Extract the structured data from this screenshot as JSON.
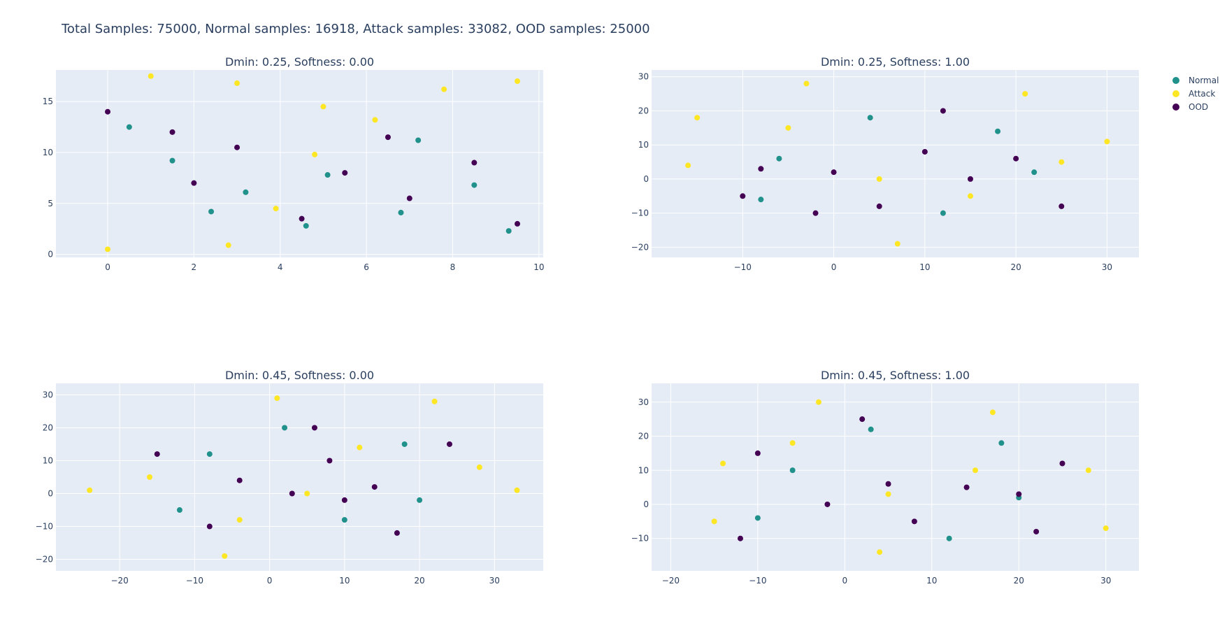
{
  "figure": {
    "title": "Total Samples: 75000, Normal samples: 16918, Attack samples: 33082, OOD samples: 25000",
    "plot_bg": "#e5ecf6",
    "grid_color": "#ffffff",
    "series_colors": {
      "Normal": "#21918c",
      "Attack": "#fde725",
      "OOD": "#440154"
    },
    "legend_placement": "top-right",
    "legend": [
      "Normal",
      "Attack",
      "OOD"
    ]
  },
  "chart_data": [
    {
      "type": "scatter",
      "title": "Dmin: 0.25, Softness: 0.00",
      "xlim": [
        -1.2,
        10.1
      ],
      "ylim": [
        -0.3,
        18.1
      ],
      "xticks": [
        0,
        2,
        4,
        6,
        8,
        10
      ],
      "yticks": [
        0,
        5,
        10,
        15
      ],
      "xtick_labels": [
        "0",
        "2",
        "4",
        "6",
        "8",
        "10"
      ],
      "ytick_labels": [
        "0",
        "5",
        "10",
        "15"
      ],
      "series": [
        {
          "name": "Normal",
          "points": [
            [
              0.5,
              12.5
            ],
            [
              1.5,
              9.2
            ],
            [
              3.2,
              6.1
            ],
            [
              5.1,
              7.8
            ],
            [
              6.8,
              4.1
            ],
            [
              8.5,
              6.8
            ],
            [
              9.3,
              2.3
            ],
            [
              7.2,
              11.2
            ],
            [
              2.4,
              4.2
            ],
            [
              4.6,
              2.8
            ]
          ]
        },
        {
          "name": "Attack",
          "points": [
            [
              1.0,
              17.5
            ],
            [
              3.0,
              16.8
            ],
            [
              5.0,
              14.5
            ],
            [
              6.2,
              13.2
            ],
            [
              4.8,
              9.8
            ],
            [
              3.9,
              4.5
            ],
            [
              2.8,
              0.9
            ],
            [
              0.0,
              0.5
            ],
            [
              7.8,
              16.2
            ],
            [
              9.5,
              17.0
            ]
          ]
        },
        {
          "name": "OOD",
          "points": [
            [
              0.0,
              14.0
            ],
            [
              1.5,
              12.0
            ],
            [
              3.0,
              10.5
            ],
            [
              5.5,
              8.0
            ],
            [
              7.0,
              5.5
            ],
            [
              8.5,
              9.0
            ],
            [
              9.5,
              3.0
            ],
            [
              2.0,
              7.0
            ],
            [
              4.5,
              3.5
            ],
            [
              6.5,
              11.5
            ]
          ]
        }
      ]
    },
    {
      "type": "scatter",
      "title": "Dmin: 0.25, Softness: 1.00",
      "xlim": [
        -20,
        33.5
      ],
      "ylim": [
        -23,
        32
      ],
      "xticks": [
        -10,
        0,
        10,
        20,
        30
      ],
      "yticks": [
        -20,
        -10,
        0,
        10,
        20,
        30
      ],
      "xtick_labels": [
        "−10",
        "0",
        "10",
        "20",
        "30"
      ],
      "ytick_labels": [
        "−20",
        "−10",
        "0",
        "10",
        "20",
        "30"
      ],
      "series": [
        {
          "name": "Normal",
          "points": [
            [
              -6,
              6
            ],
            [
              12,
              -10
            ],
            [
              18,
              14
            ],
            [
              -8,
              -6
            ],
            [
              22,
              2
            ],
            [
              4,
              18
            ]
          ]
        },
        {
          "name": "Attack",
          "points": [
            [
              -15,
              18
            ],
            [
              -16,
              4
            ],
            [
              30,
              11
            ],
            [
              -3,
              28
            ],
            [
              21,
              25
            ],
            [
              7,
              -19
            ],
            [
              5,
              0
            ],
            [
              15,
              -5
            ],
            [
              25,
              5
            ],
            [
              -5,
              15
            ]
          ]
        },
        {
          "name": "OOD",
          "points": [
            [
              10,
              8
            ],
            [
              0,
              2
            ],
            [
              -8,
              3
            ],
            [
              15,
              0
            ],
            [
              20,
              6
            ],
            [
              5,
              -8
            ],
            [
              -2,
              -10
            ],
            [
              25,
              -8
            ],
            [
              12,
              20
            ],
            [
              -10,
              -5
            ]
          ]
        }
      ]
    },
    {
      "type": "scatter",
      "title": "Dmin: 0.45, Softness: 0.00",
      "xlim": [
        -28.5,
        36.5
      ],
      "ylim": [
        -23.5,
        33.5
      ],
      "xticks": [
        -20,
        -10,
        0,
        10,
        20,
        30
      ],
      "yticks": [
        -20,
        -10,
        0,
        10,
        20,
        30
      ],
      "xtick_labels": [
        "−20",
        "−10",
        "0",
        "10",
        "20",
        "30"
      ],
      "ytick_labels": [
        "−20",
        "−10",
        "0",
        "10",
        "20",
        "30"
      ],
      "series": [
        {
          "name": "Normal",
          "points": [
            [
              -8,
              12
            ],
            [
              10,
              -8
            ],
            [
              18,
              15
            ],
            [
              -12,
              -5
            ],
            [
              20,
              -2
            ],
            [
              2,
              20
            ]
          ]
        },
        {
          "name": "Attack",
          "points": [
            [
              -16,
              5
            ],
            [
              -6,
              -19
            ],
            [
              28,
              8
            ],
            [
              1,
              29
            ],
            [
              22,
              28
            ],
            [
              -24,
              1
            ],
            [
              33,
              1
            ],
            [
              5,
              0
            ],
            [
              12,
              14
            ],
            [
              -4,
              -8
            ]
          ]
        },
        {
          "name": "OOD",
          "points": [
            [
              8,
              10
            ],
            [
              3,
              0
            ],
            [
              -4,
              4
            ],
            [
              10,
              -2
            ],
            [
              14,
              2
            ],
            [
              -8,
              -10
            ],
            [
              24,
              15
            ],
            [
              -15,
              12
            ],
            [
              6,
              20
            ],
            [
              17,
              -12
            ]
          ]
        }
      ]
    },
    {
      "type": "scatter",
      "title": "Dmin: 0.45, Softness: 1.00",
      "xlim": [
        -22.2,
        33.8
      ],
      "ylim": [
        -19.5,
        35.5
      ],
      "xticks": [
        -20,
        -10,
        0,
        10,
        20,
        30
      ],
      "yticks": [
        -10,
        0,
        10,
        20,
        30
      ],
      "xtick_labels": [
        "−20",
        "−10",
        "0",
        "10",
        "20",
        "30"
      ],
      "ytick_labels": [
        "−10",
        "0",
        "10",
        "20",
        "30"
      ],
      "series": [
        {
          "name": "Normal",
          "points": [
            [
              -6,
              10
            ],
            [
              12,
              -10
            ],
            [
              18,
              18
            ],
            [
              -10,
              -4
            ],
            [
              20,
              2
            ],
            [
              3,
              22
            ]
          ]
        },
        {
          "name": "Attack",
          "points": [
            [
              -15,
              -5
            ],
            [
              -14,
              12
            ],
            [
              28,
              10
            ],
            [
              -3,
              30
            ],
            [
              17,
              27
            ],
            [
              4,
              -14
            ],
            [
              30,
              -7
            ],
            [
              5,
              3
            ],
            [
              15,
              10
            ],
            [
              -6,
              18
            ]
          ]
        },
        {
          "name": "OOD",
          "points": [
            [
              5,
              6
            ],
            [
              14,
              5
            ],
            [
              -2,
              0
            ],
            [
              8,
              -5
            ],
            [
              20,
              3
            ],
            [
              25,
              12
            ],
            [
              -10,
              15
            ],
            [
              2,
              25
            ],
            [
              22,
              -8
            ],
            [
              -12,
              -10
            ]
          ]
        }
      ]
    }
  ]
}
